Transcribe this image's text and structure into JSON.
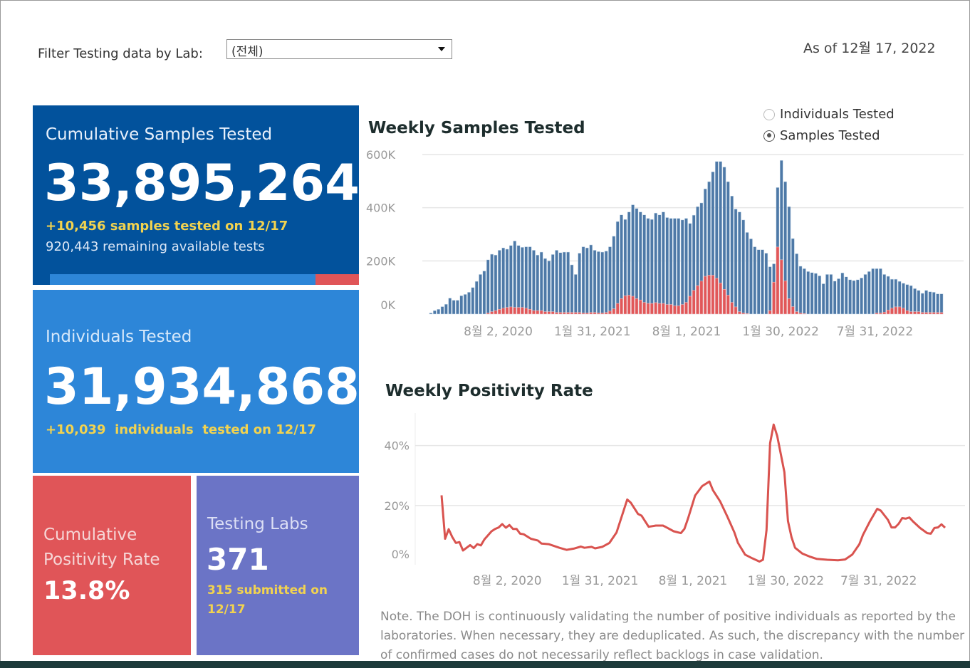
{
  "filter": {
    "label": "Filter Testing data by Lab:",
    "selected": "(전체)"
  },
  "as_of": "As of 12월 17, 2022",
  "kpis": {
    "samples": {
      "title": "Cumulative Samples Tested",
      "value": "33,895,264",
      "delta": "+10,456 samples tested on 12/17",
      "remaining": "920,443 remaining available tests",
      "progress_fraction": 0.86
    },
    "individuals": {
      "title": "Individuals Tested",
      "value": "31,934,868",
      "delta": "+10,039  individuals  tested on 12/17"
    },
    "positivity": {
      "title_line1": "Cumulative",
      "title_line2": "Positivity Rate",
      "value": "13.8%"
    },
    "labs": {
      "title": "Testing Labs",
      "value": "371",
      "sub_line1": "315 submitted on",
      "sub_line2": "12/17"
    }
  },
  "toggle": {
    "options": [
      {
        "label": "Individuals Tested",
        "selected": false
      },
      {
        "label": "Samples Tested",
        "selected": true
      }
    ]
  },
  "colors": {
    "dark_blue": "#02529c",
    "blue": "#2d86d8",
    "red": "#e05558",
    "purple": "#6b74c6",
    "yellow": "#f2d34f",
    "bar_total": "#4e79a7",
    "bar_positive": "#e15759",
    "line": "#d9534f"
  },
  "chart_data": [
    {
      "type": "bar",
      "title": "Weekly Samples Tested",
      "x_start": "2020-03-29",
      "x_end": "2022-12-11",
      "interval": "weekly",
      "x_ticks": [
        {
          "date": "2020-08-02",
          "label": "8월 2, 2020"
        },
        {
          "date": "2021-01-31",
          "label": "1월 31, 2021"
        },
        {
          "date": "2021-08-01",
          "label": "8월 1, 2021"
        },
        {
          "date": "2022-01-30",
          "label": "1월 30, 2022"
        },
        {
          "date": "2022-07-31",
          "label": "7월 31, 2022"
        }
      ],
      "y_ticks": [
        {
          "value": 0,
          "label": "0K"
        },
        {
          "value": 200,
          "label": "200K"
        },
        {
          "value": 400,
          "label": "400K"
        },
        {
          "value": 600,
          "label": "600K"
        }
      ],
      "ylim": [
        0,
        600
      ],
      "y_unit": "thousands",
      "grid": true,
      "stacked_overlay": true,
      "series": [
        {
          "values": [
            4,
            13,
            18,
            28,
            37,
            60,
            52,
            52,
            69,
            74,
            82,
            100,
            123,
            149,
            162,
            204,
            225,
            222,
            240,
            249,
            244,
            258,
            275,
            258,
            251,
            253,
            253,
            240,
            222,
            233,
            209,
            200,
            224,
            240,
            231,
            233,
            233,
            185,
            149,
            229,
            253,
            249,
            260,
            240,
            235,
            233,
            237,
            253,
            293,
            348,
            373,
            356,
            384,
            411,
            397,
            384,
            373,
            360,
            356,
            380,
            373,
            384,
            363,
            360,
            360,
            360,
            354,
            360,
            341,
            372,
            404,
            418,
            471,
            498,
            535,
            574,
            574,
            553,
            498,
            444,
            395,
            384,
            354,
            307,
            283,
            253,
            242,
            242,
            229,
            178,
            189,
            476,
            578,
            498,
            404,
            284,
            227,
            180,
            171,
            160,
            156,
            153,
            144,
            114,
            149,
            149,
            124,
            133,
            155,
            140,
            129,
            126,
            129,
            136,
            149,
            160,
            171,
            171,
            171,
            149,
            142,
            131,
            131,
            123,
            116,
            111,
            107,
            96,
            89,
            78,
            89,
            84,
            82,
            76,
            76
          ]
        },
        {
          "values": [
            0,
            0,
            0,
            0,
            0,
            0,
            0,
            0,
            0,
            0,
            0,
            0,
            0,
            0,
            0,
            4,
            9,
            13,
            18,
            22,
            25,
            27,
            25,
            25,
            25,
            22,
            18,
            13,
            13,
            13,
            9,
            9,
            9,
            6,
            6,
            6,
            6,
            6,
            6,
            6,
            4,
            4,
            6,
            6,
            4,
            4,
            6,
            11,
            20,
            40,
            58,
            69,
            71,
            67,
            58,
            53,
            44,
            40,
            40,
            43,
            40,
            40,
            36,
            36,
            31,
            31,
            36,
            44,
            67,
            89,
            107,
            124,
            142,
            146,
            146,
            135,
            117,
            93,
            71,
            44,
            27,
            9,
            4,
            2,
            0,
            0,
            0,
            0,
            0,
            13,
            120,
            252,
            204,
            125,
            58,
            28,
            9,
            4,
            2,
            0,
            0,
            0,
            0,
            0,
            0,
            0,
            0,
            0,
            0,
            0,
            0,
            0,
            0,
            0,
            0,
            0,
            0,
            4,
            4,
            7,
            15,
            22,
            27,
            27,
            22,
            13,
            9,
            9,
            9,
            6,
            6,
            6,
            6,
            6,
            6
          ]
        }
      ]
    },
    {
      "type": "line",
      "title": "Weekly Positivity Rate",
      "x_start": "2020-03-29",
      "x_end": "2022-12-11",
      "x_ticks": [
        {
          "date": "2020-08-02",
          "label": "8월 2, 2020"
        },
        {
          "date": "2021-01-31",
          "label": "1월 31, 2021"
        },
        {
          "date": "2021-08-01",
          "label": "8월 1, 2021"
        },
        {
          "date": "2022-01-30",
          "label": "1월 30, 2022"
        },
        {
          "date": "2022-07-31",
          "label": "7월 31, 2022"
        }
      ],
      "y_ticks": [
        {
          "value": 0,
          "label": "0%"
        },
        {
          "value": 20,
          "label": "20%"
        },
        {
          "value": 40,
          "label": "40%"
        }
      ],
      "ylim": [
        0,
        48
      ],
      "grid": true,
      "points": [
        [
          "2020-03-29",
          23.4
        ],
        [
          "2020-04-05",
          8.9
        ],
        [
          "2020-04-12",
          12.1
        ],
        [
          "2020-04-19",
          9.5
        ],
        [
          "2020-04-26",
          7.5
        ],
        [
          "2020-05-03",
          7.8
        ],
        [
          "2020-05-10",
          5.0
        ],
        [
          "2020-05-24",
          6.8
        ],
        [
          "2020-05-31",
          5.8
        ],
        [
          "2020-06-07",
          7.1
        ],
        [
          "2020-06-14",
          6.7
        ],
        [
          "2020-06-21",
          8.7
        ],
        [
          "2020-07-05",
          11.4
        ],
        [
          "2020-07-12",
          12.2
        ],
        [
          "2020-07-19",
          12.7
        ],
        [
          "2020-07-26",
          13.8
        ],
        [
          "2020-08-02",
          12.6
        ],
        [
          "2020-08-09",
          13.5
        ],
        [
          "2020-08-16",
          12.2
        ],
        [
          "2020-08-23",
          12.2
        ],
        [
          "2020-08-30",
          10.6
        ],
        [
          "2020-09-06",
          10.4
        ],
        [
          "2020-09-20",
          8.9
        ],
        [
          "2020-10-04",
          8.3
        ],
        [
          "2020-10-11",
          7.3
        ],
        [
          "2020-10-25",
          7.1
        ],
        [
          "2020-11-15",
          5.9
        ],
        [
          "2020-11-29",
          5.2
        ],
        [
          "2020-12-13",
          5.6
        ],
        [
          "2020-12-27",
          6.3
        ],
        [
          "2021-01-03",
          5.9
        ],
        [
          "2021-01-17",
          6.2
        ],
        [
          "2021-01-24",
          5.7
        ],
        [
          "2021-02-07",
          6.2
        ],
        [
          "2021-02-21",
          7.5
        ],
        [
          "2021-03-07",
          11.0
        ],
        [
          "2021-03-28",
          22.0
        ],
        [
          "2021-04-04",
          20.9
        ],
        [
          "2021-04-18",
          17.2
        ],
        [
          "2021-04-25",
          16.6
        ],
        [
          "2021-05-09",
          12.9
        ],
        [
          "2021-05-23",
          13.3
        ],
        [
          "2021-06-06",
          13.3
        ],
        [
          "2021-06-13",
          12.7
        ],
        [
          "2021-06-27",
          11.4
        ],
        [
          "2021-07-11",
          10.8
        ],
        [
          "2021-07-18",
          12.2
        ],
        [
          "2021-07-25",
          15.6
        ],
        [
          "2021-08-08",
          23.3
        ],
        [
          "2021-08-22",
          26.5
        ],
        [
          "2021-09-05",
          28.0
        ],
        [
          "2021-09-12",
          25.1
        ],
        [
          "2021-09-26",
          21.4
        ],
        [
          "2021-10-10",
          16.4
        ],
        [
          "2021-10-24",
          11.0
        ],
        [
          "2021-10-31",
          7.5
        ],
        [
          "2021-11-14",
          3.6
        ],
        [
          "2021-11-28",
          2.4
        ],
        [
          "2021-12-12",
          1.3
        ],
        [
          "2021-12-19",
          1.9
        ],
        [
          "2021-12-26",
          11.8
        ],
        [
          "2022-01-02",
          40.8
        ],
        [
          "2022-01-09",
          47.0
        ],
        [
          "2022-01-16",
          43.2
        ],
        [
          "2022-01-30",
          31.1
        ],
        [
          "2022-02-06",
          14.8
        ],
        [
          "2022-02-13",
          9.4
        ],
        [
          "2022-02-20",
          5.9
        ],
        [
          "2022-03-06",
          4.0
        ],
        [
          "2022-03-20",
          3.0
        ],
        [
          "2022-04-03",
          2.2
        ],
        [
          "2022-04-24",
          1.9
        ],
        [
          "2022-05-15",
          1.7
        ],
        [
          "2022-05-29",
          2.0
        ],
        [
          "2022-06-12",
          3.6
        ],
        [
          "2022-06-26",
          7.1
        ],
        [
          "2022-07-03",
          10.2
        ],
        [
          "2022-07-17",
          14.8
        ],
        [
          "2022-07-31",
          18.9
        ],
        [
          "2022-08-07",
          18.3
        ],
        [
          "2022-08-21",
          15.2
        ],
        [
          "2022-08-28",
          12.7
        ],
        [
          "2022-09-04",
          12.7
        ],
        [
          "2022-09-11",
          13.9
        ],
        [
          "2022-09-18",
          15.8
        ],
        [
          "2022-09-25",
          15.6
        ],
        [
          "2022-10-02",
          16.0
        ],
        [
          "2022-10-09",
          14.7
        ],
        [
          "2022-10-23",
          12.5
        ],
        [
          "2022-11-06",
          10.8
        ],
        [
          "2022-11-13",
          10.6
        ],
        [
          "2022-11-20",
          12.5
        ],
        [
          "2022-11-27",
          12.7
        ],
        [
          "2022-12-04",
          13.7
        ],
        [
          "2022-12-11",
          12.6
        ]
      ]
    }
  ],
  "note": "Note. The DOH is continuously validating the number of positive individuals as reported by the laboratories. When necessary, they are deduplicated. As such, the discrepancy with the number of confirmed cases do not necessarily reflect backlogs in case validation."
}
